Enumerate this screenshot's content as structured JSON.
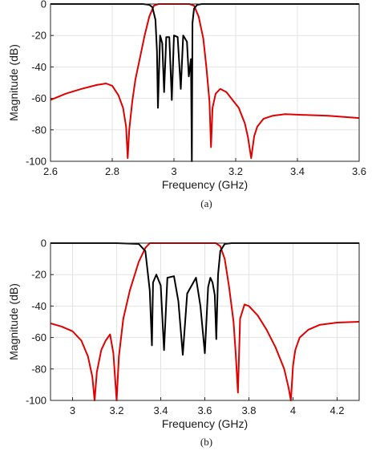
{
  "chart_data": [
    {
      "type": "line",
      "panel_caption": "(a)",
      "xlabel": "Frequency (GHz)",
      "ylabel": "Magnitude (dB)",
      "xlim": [
        2.6,
        3.6
      ],
      "ylim": [
        -100,
        0
      ],
      "xticks": [
        "2.6",
        "2.8",
        "3",
        "3.2",
        "3.4",
        "3.6"
      ],
      "yticks": [
        "0",
        "-20",
        "-40",
        "-60",
        "-80",
        "-100"
      ],
      "grid": true,
      "series": [
        {
          "color": "#e00000",
          "x": [
            2.6,
            2.65,
            2.7,
            2.75,
            2.78,
            2.8,
            2.82,
            2.835,
            2.845,
            2.85,
            2.855,
            2.865,
            2.875,
            2.89,
            2.905,
            2.92,
            2.935,
            2.95,
            2.97,
            3.0,
            3.03,
            3.05,
            3.065,
            3.08,
            3.095,
            3.105,
            3.115,
            3.12,
            3.125,
            3.135,
            3.15,
            3.17,
            3.19,
            3.21,
            3.23,
            3.24,
            3.25,
            3.26,
            3.27,
            3.29,
            3.32,
            3.36,
            3.42,
            3.5,
            3.6
          ],
          "y": [
            -61,
            -57,
            -54,
            -51.5,
            -50.5,
            -52,
            -58,
            -66,
            -78,
            -98,
            -80,
            -62,
            -48,
            -34,
            -20,
            -8,
            -1,
            0,
            0,
            0,
            0,
            0,
            -1,
            -8,
            -22,
            -40,
            -62,
            -91,
            -66,
            -57,
            -54,
            -56,
            -61,
            -66,
            -76,
            -85,
            -98,
            -84,
            -78,
            -73,
            -71,
            -70,
            -70.5,
            -71,
            -72.5
          ]
        },
        {
          "color": "#000000",
          "x": [
            2.6,
            2.7,
            2.8,
            2.9,
            2.92,
            2.93,
            2.94,
            2.945,
            2.948,
            2.955,
            2.962,
            2.968,
            2.975,
            2.985,
            2.993,
            3.0,
            3.012,
            3.022,
            3.03,
            3.036,
            3.042,
            3.048,
            3.055,
            3.058,
            3.06,
            3.065,
            3.075,
            3.09,
            3.1,
            3.2,
            3.4,
            3.6
          ],
          "y": [
            0,
            0,
            0,
            0,
            -0.5,
            -2,
            -10,
            -30,
            -66,
            -20,
            -25,
            -56,
            -21,
            -21,
            -61,
            -20,
            -21,
            -54,
            -20,
            -22,
            -24,
            -46,
            -35,
            -100,
            -12,
            -3,
            -0.5,
            0,
            0,
            0,
            0,
            0
          ]
        }
      ]
    },
    {
      "type": "line",
      "panel_caption": "(b)",
      "xlabel": "Frequency (GHz)",
      "ylabel": "Magnitude (dB)",
      "xlim": [
        2.9,
        4.3
      ],
      "ylim": [
        -100,
        0
      ],
      "xticks": [
        "3",
        "3.2",
        "3.4",
        "3.6",
        "3.8",
        "4",
        "4.2"
      ],
      "yticks": [
        "0",
        "-20",
        "-40",
        "-60",
        "-80",
        "-100"
      ],
      "grid": true,
      "series": [
        {
          "color": "#e00000",
          "x": [
            2.9,
            2.95,
            3.0,
            3.04,
            3.07,
            3.09,
            3.1,
            3.11,
            3.13,
            3.15,
            3.17,
            3.185,
            3.2,
            3.21,
            3.23,
            3.26,
            3.3,
            3.33,
            3.35,
            3.37,
            3.4,
            3.5,
            3.6,
            3.65,
            3.67,
            3.69,
            3.71,
            3.73,
            3.74,
            3.75,
            3.76,
            3.78,
            3.8,
            3.84,
            3.88,
            3.92,
            3.96,
            3.98,
            3.99,
            4.0,
            4.01,
            4.03,
            4.07,
            4.12,
            4.2,
            4.3
          ],
          "y": [
            -51,
            -53,
            -56,
            -62,
            -72,
            -85,
            -100,
            -82,
            -68,
            -62,
            -58,
            -70,
            -100,
            -72,
            -48,
            -30,
            -12,
            -3,
            0,
            0,
            0,
            0,
            0,
            0,
            -2,
            -10,
            -28,
            -50,
            -70,
            -95,
            -48,
            -39,
            -40,
            -46,
            -55,
            -66,
            -80,
            -92,
            -100,
            -78,
            -68,
            -60,
            -55,
            -52,
            -50.5,
            -50
          ]
        },
        {
          "color": "#000000",
          "x": [
            2.9,
            3.0,
            3.2,
            3.3,
            3.33,
            3.35,
            3.36,
            3.365,
            3.38,
            3.4,
            3.415,
            3.43,
            3.46,
            3.48,
            3.5,
            3.52,
            3.56,
            3.58,
            3.6,
            3.615,
            3.625,
            3.635,
            3.645,
            3.652,
            3.66,
            3.67,
            3.69,
            3.72,
            3.8,
            4.0,
            4.3
          ],
          "y": [
            0,
            0,
            0,
            -0.5,
            -5,
            -30,
            -65,
            -25,
            -20,
            -27,
            -68,
            -22,
            -21,
            -37,
            -71,
            -32,
            -22,
            -40,
            -70,
            -28,
            -22,
            -25,
            -33,
            -61,
            -20,
            -5,
            -0.5,
            0,
            0,
            0,
            0
          ]
        }
      ]
    }
  ]
}
